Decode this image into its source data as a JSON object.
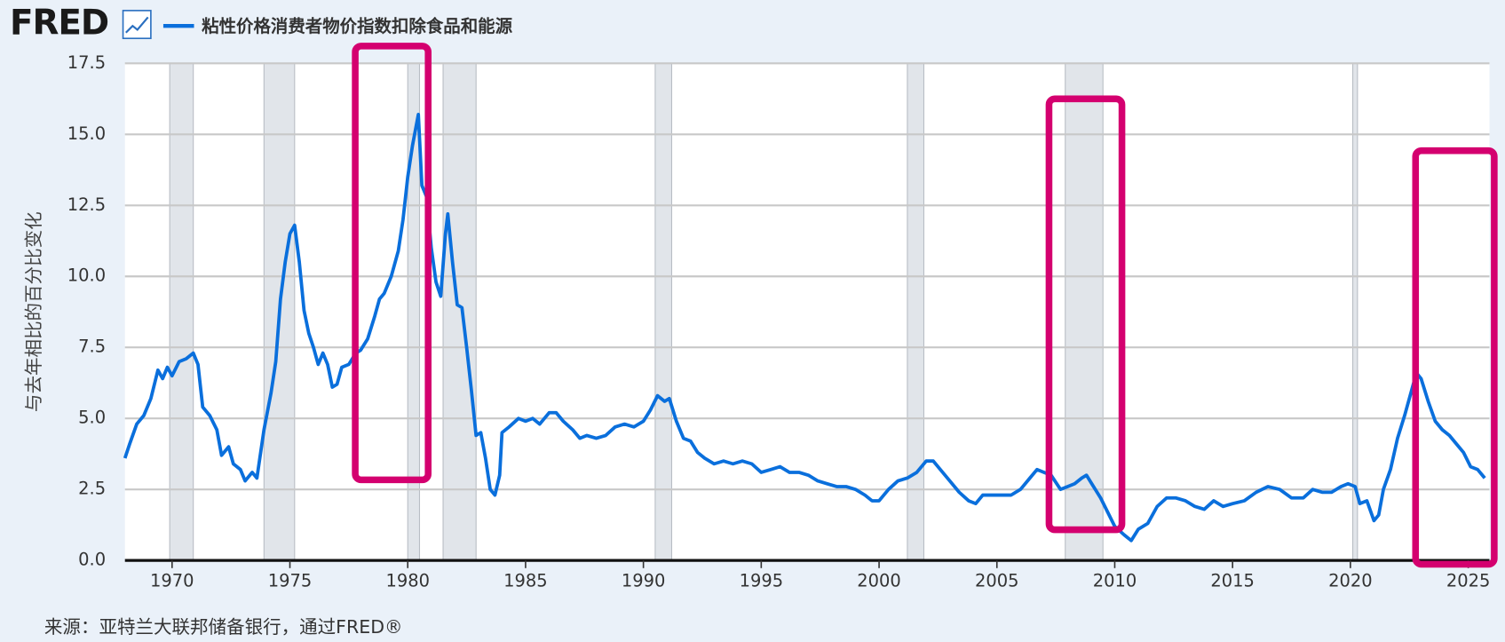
{
  "chart_data": {
    "type": "line",
    "logo": "FRED",
    "y_label": "与去年相比的百分比变化",
    "source": "来源：亚特兰大联邦储备银行，通过FRED®",
    "xlim": [
      1968,
      2025.9
    ],
    "xticks": [
      1970,
      1975,
      1980,
      1985,
      1990,
      1995,
      2000,
      2005,
      2010,
      2015,
      2020,
      2025
    ],
    "ylim": [
      0,
      17.5
    ],
    "yticks": [
      {
        "value": 0,
        "label": "0.0"
      },
      2.5,
      {
        "value": 5,
        "label": "5.0"
      },
      7.5,
      {
        "value": 10,
        "label": "10.0"
      },
      12.5,
      {
        "value": 15,
        "label": "15.0"
      },
      17.5
    ],
    "grid": true,
    "recessions": [
      [
        1969.9,
        1970.9
      ],
      [
        1973.9,
        1975.2
      ],
      [
        1980.0,
        1980.5
      ],
      [
        1981.5,
        1982.9
      ],
      [
        1990.5,
        1991.2
      ],
      [
        2001.2,
        2001.9
      ],
      [
        2007.9,
        2009.5
      ],
      [
        2020.1,
        2020.3
      ]
    ],
    "x": [
      1968.0,
      1968.2,
      1968.5,
      1968.8,
      1969.1,
      1969.4,
      1969.6,
      1969.8,
      1970.0,
      1970.3,
      1970.6,
      1970.9,
      1971.1,
      1971.3,
      1971.6,
      1971.9,
      1972.1,
      1972.4,
      1972.6,
      1972.9,
      1973.1,
      1973.4,
      1973.6,
      1973.9,
      1974.2,
      1974.4,
      1974.6,
      1974.8,
      1975.0,
      1975.2,
      1975.4,
      1975.6,
      1975.8,
      1976.0,
      1976.2,
      1976.4,
      1976.6,
      1976.8,
      1977.0,
      1977.2,
      1977.5,
      1977.8,
      1978.0,
      1978.3,
      1978.6,
      1978.8,
      1979.0,
      1979.3,
      1979.6,
      1979.8,
      1980.0,
      1980.2,
      1980.45,
      1980.6,
      1980.8,
      1981.0,
      1981.2,
      1981.4,
      1981.6,
      1981.7,
      1981.9,
      1982.1,
      1982.3,
      1982.5,
      1982.7,
      1982.9,
      1983.1,
      1983.3,
      1983.5,
      1983.7,
      1983.9,
      1984.0,
      1984.3,
      1984.7,
      1985.0,
      1985.3,
      1985.6,
      1986.0,
      1986.3,
      1986.6,
      1987.0,
      1987.3,
      1987.6,
      1988.0,
      1988.4,
      1988.8,
      1989.2,
      1989.6,
      1990.0,
      1990.3,
      1990.6,
      1990.9,
      1991.1,
      1991.4,
      1991.7,
      1992.0,
      1992.3,
      1992.6,
      1993.0,
      1993.4,
      1993.8,
      1994.2,
      1994.6,
      1995.0,
      1995.4,
      1995.8,
      1996.2,
      1996.6,
      1997.0,
      1997.4,
      1997.8,
      1998.2,
      1998.6,
      1999.0,
      1999.4,
      1999.7,
      2000.0,
      2000.4,
      2000.8,
      2001.2,
      2001.6,
      2002.0,
      2002.3,
      2002.6,
      2003.0,
      2003.4,
      2003.8,
      2004.1,
      2004.4,
      2004.8,
      2005.2,
      2005.6,
      2006.0,
      2006.4,
      2006.7,
      2007.0,
      2007.3,
      2007.7,
      2008.0,
      2008.3,
      2008.6,
      2008.8,
      2009.1,
      2009.4,
      2009.7,
      2010.0,
      2010.4,
      2010.7,
      2011.0,
      2011.4,
      2011.8,
      2012.2,
      2012.6,
      2013.0,
      2013.4,
      2013.8,
      2014.2,
      2014.6,
      2015.0,
      2015.5,
      2016.0,
      2016.5,
      2017.0,
      2017.5,
      2018.0,
      2018.4,
      2018.8,
      2019.2,
      2019.6,
      2019.9,
      2020.2,
      2020.4,
      2020.7,
      2021.0,
      2021.2,
      2021.4,
      2021.7,
      2022.0,
      2022.3,
      2022.6,
      2022.8,
      2023.0,
      2023.3,
      2023.6,
      2023.9,
      2024.2,
      2024.5,
      2024.8,
      2025.1,
      2025.4,
      2025.7
    ],
    "series": [
      {
        "name": "粘性价格消费者物价指数扣除食品和能源",
        "color": "#0a6fdc",
        "values": [
          3.6,
          4.1,
          4.8,
          5.1,
          5.7,
          6.7,
          6.4,
          6.8,
          6.5,
          7.0,
          7.1,
          7.3,
          6.9,
          5.4,
          5.1,
          4.6,
          3.7,
          4.0,
          3.4,
          3.2,
          2.8,
          3.1,
          2.9,
          4.6,
          5.9,
          7.0,
          9.2,
          10.5,
          11.5,
          11.8,
          10.5,
          8.8,
          8.0,
          7.5,
          6.9,
          7.3,
          6.9,
          6.1,
          6.2,
          6.8,
          6.9,
          7.3,
          7.4,
          7.8,
          8.6,
          9.2,
          9.4,
          10.0,
          10.9,
          12.0,
          13.5,
          14.6,
          15.7,
          13.2,
          12.8,
          11.0,
          9.8,
          9.3,
          11.5,
          12.2,
          10.5,
          9.0,
          8.9,
          7.5,
          6.0,
          4.4,
          4.5,
          3.6,
          2.5,
          2.3,
          3.0,
          4.5,
          4.7,
          5.0,
          4.9,
          5.0,
          4.8,
          5.2,
          5.2,
          4.9,
          4.6,
          4.3,
          4.4,
          4.3,
          4.4,
          4.7,
          4.8,
          4.7,
          4.9,
          5.3,
          5.8,
          5.6,
          5.7,
          4.9,
          4.3,
          4.2,
          3.8,
          3.6,
          3.4,
          3.5,
          3.4,
          3.5,
          3.4,
          3.1,
          3.2,
          3.3,
          3.1,
          3.1,
          3.0,
          2.8,
          2.7,
          2.6,
          2.6,
          2.5,
          2.3,
          2.1,
          2.1,
          2.5,
          2.8,
          2.9,
          3.1,
          3.5,
          3.5,
          3.2,
          2.8,
          2.4,
          2.1,
          2.0,
          2.3,
          2.3,
          2.3,
          2.3,
          2.5,
          2.9,
          3.2,
          3.1,
          3.0,
          2.5,
          2.6,
          2.7,
          2.9,
          3.0,
          2.6,
          2.2,
          1.7,
          1.2,
          0.9,
          0.7,
          1.1,
          1.3,
          1.9,
          2.2,
          2.2,
          2.1,
          1.9,
          1.8,
          2.1,
          1.9,
          2.0,
          2.1,
          2.4,
          2.6,
          2.5,
          2.2,
          2.2,
          2.5,
          2.4,
          2.4,
          2.6,
          2.7,
          2.6,
          2.0,
          2.1,
          1.4,
          1.6,
          2.5,
          3.2,
          4.3,
          5.1,
          6.0,
          6.6,
          6.4,
          5.6,
          4.9,
          4.6,
          4.4,
          4.1,
          3.8,
          3.3,
          3.2,
          2.9
        ]
      }
    ]
  }
}
